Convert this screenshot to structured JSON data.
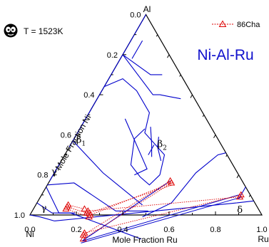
{
  "colors": {
    "boundary": "#0000cc",
    "tie_line": "#0000cc",
    "experiment": "#dd0000",
    "frame": "#000000",
    "title": "#1010cc"
  },
  "legend": {
    "label": "86Cha"
  },
  "temperature_label": "T = 1523K",
  "chart_data": {
    "type": "ternary",
    "title": "Ni-Al-Ru",
    "corners": {
      "top": "Al",
      "left": "Ni",
      "right": "Ru"
    },
    "left_axis_label": "Mole Fraction Ni",
    "bottom_axis_label": "Mole Fraction Ru",
    "left_ticks": [
      "0.0",
      "0.2",
      "0.4",
      "0.6",
      "0.8",
      "1.0"
    ],
    "bottom_ticks": [
      "0.0",
      "0.2",
      "0.4",
      "0.6",
      "0.8",
      "1.0"
    ],
    "phase_labels": [
      {
        "text": "β",
        "sub": "1",
        "ni": 0.6,
        "ru": 0.04
      },
      {
        "text": "β",
        "sub": "2",
        "ni": 0.26,
        "ru": 0.4
      },
      {
        "text": "γ'",
        "sub": "",
        "ni": 0.79,
        "ru": 0.01
      },
      {
        "text": "γ",
        "sub": "",
        "ni": 0.93,
        "ru": 0.05
      },
      {
        "text": "δ",
        "sub": "",
        "ni": 0.09,
        "ru": 0.9
      }
    ],
    "boundary_lines": [
      [
        [
          0.0,
          0.0
        ],
        [
          0.66,
          0.0
        ]
      ],
      [
        [
          0.74,
          0.0
        ],
        [
          0.83,
          0.0
        ]
      ],
      [
        [
          0.63,
          0.0
        ],
        [
          0.58,
          0.21
        ],
        [
          0.49,
          0.46
        ]
      ],
      [
        [
          0.85,
          0.0
        ],
        [
          0.73,
          0.11
        ],
        [
          0.62,
          0.36
        ],
        [
          0.48,
          0.5
        ]
      ],
      [
        [
          0.94,
          0.0
        ],
        [
          0.9,
          0.09
        ],
        [
          0.82,
          0.17
        ],
        [
          0.58,
          0.54
        ]
      ],
      [
        [
          0.86,
          0.0
        ],
        [
          0.87,
          0.12
        ],
        [
          0.8,
          0.19
        ]
      ],
      [
        [
          1.0,
          0.0
        ],
        [
          0.96,
          0.05
        ],
        [
          0.91,
          0.12
        ]
      ],
      [
        [
          0.91,
          0.12
        ],
        [
          0.08,
          0.86
        ]
      ],
      [
        [
          0.08,
          0.86
        ],
        [
          0.0,
          0.93
        ]
      ],
      [
        [
          0.52,
          0.49
        ],
        [
          0.36,
          0.58
        ],
        [
          0.18,
          0.61
        ],
        [
          0.04,
          0.66
        ],
        [
          0.0,
          0.69
        ]
      ],
      [
        [
          0.06,
          0.86
        ],
        [
          0.0,
          0.86
        ]
      ],
      [
        [
          0.2,
          0.0
        ],
        [
          0.17,
          0.23
        ],
        [
          0.14,
          0.26
        ],
        [
          0.1,
          0.31
        ],
        [
          0.06,
          0.36
        ]
      ],
      [
        [
          0.2,
          0.0
        ],
        [
          0.13,
          0.17
        ],
        [
          0.08,
          0.22
        ]
      ],
      [
        [
          0.17,
          0.05
        ],
        [
          0.08,
          0.05
        ]
      ],
      [
        [
          0.36,
          0.0
        ],
        [
          0.26,
          0.06
        ],
        [
          0.23,
          0.15
        ],
        [
          0.23,
          0.26
        ],
        [
          0.3,
          0.29
        ],
        [
          0.27,
          0.43
        ],
        [
          0.34,
          0.46
        ],
        [
          0.41,
          0.44
        ],
        [
          0.43,
          0.38
        ],
        [
          0.44,
          0.31
        ],
        [
          0.36,
          0.26
        ],
        [
          0.29,
          0.28
        ]
      ],
      [
        [
          0.35,
          0.17
        ],
        [
          0.38,
          0.39
        ],
        [
          0.45,
          0.35
        ]
      ],
      [
        [
          0.26,
          0.3
        ],
        [
          0.3,
          0.35
        ],
        [
          0.33,
          0.38
        ]
      ],
      [
        [
          0.29,
          0.36
        ],
        [
          0.34,
          0.36
        ]
      ],
      [
        [
          0.25,
          0.36
        ],
        [
          0.28,
          0.38
        ],
        [
          0.3,
          0.43
        ]
      ]
    ],
    "tie_lines": [
      [
        [
          0.84,
          0.29
        ],
        [
          0.31,
          0.52
        ]
      ],
      [
        [
          0.85,
          0.29
        ],
        [
          0.04,
          0.87
        ]
      ],
      [
        [
          0.84,
          0.29
        ],
        [
          0.05,
          0.85
        ]
      ]
    ],
    "experimental_tie_lines": [
      [
        [
          0.83,
          0.29
        ],
        [
          0.31,
          0.53
        ]
      ],
      [
        [
          0.82,
          0.28
        ],
        [
          0.31,
          0.52
        ]
      ],
      [
        [
          0.81,
          0.28
        ],
        [
          0.04,
          0.86
        ]
      ],
      [
        [
          0.74,
          0.24
        ],
        [
          0.05,
          0.86
        ]
      ],
      [
        [
          0.74,
          0.25
        ],
        [
          0.31,
          0.54
        ]
      ],
      [
        [
          0.74,
          0.26
        ],
        [
          0.31,
          0.53
        ]
      ],
      [
        [
          0.81,
          0.14
        ],
        [
          0.75,
          0.22
        ]
      ],
      [
        [
          0.82,
          0.14
        ],
        [
          0.75,
          0.24
        ]
      ],
      [
        [
          0.83,
          0.14
        ],
        [
          0.75,
          0.26
        ]
      ]
    ],
    "experimental_points": [
      [
        0.83,
        0.29
      ],
      [
        0.82,
        0.28
      ],
      [
        0.81,
        0.28
      ],
      [
        0.74,
        0.24
      ],
      [
        0.74,
        0.25
      ],
      [
        0.74,
        0.26
      ],
      [
        0.81,
        0.14
      ],
      [
        0.82,
        0.14
      ],
      [
        0.83,
        0.14
      ],
      [
        0.75,
        0.22
      ],
      [
        0.75,
        0.24
      ],
      [
        0.75,
        0.26
      ],
      [
        0.31,
        0.53
      ],
      [
        0.31,
        0.52
      ],
      [
        0.05,
        0.86
      ],
      [
        0.04,
        0.86
      ]
    ]
  }
}
